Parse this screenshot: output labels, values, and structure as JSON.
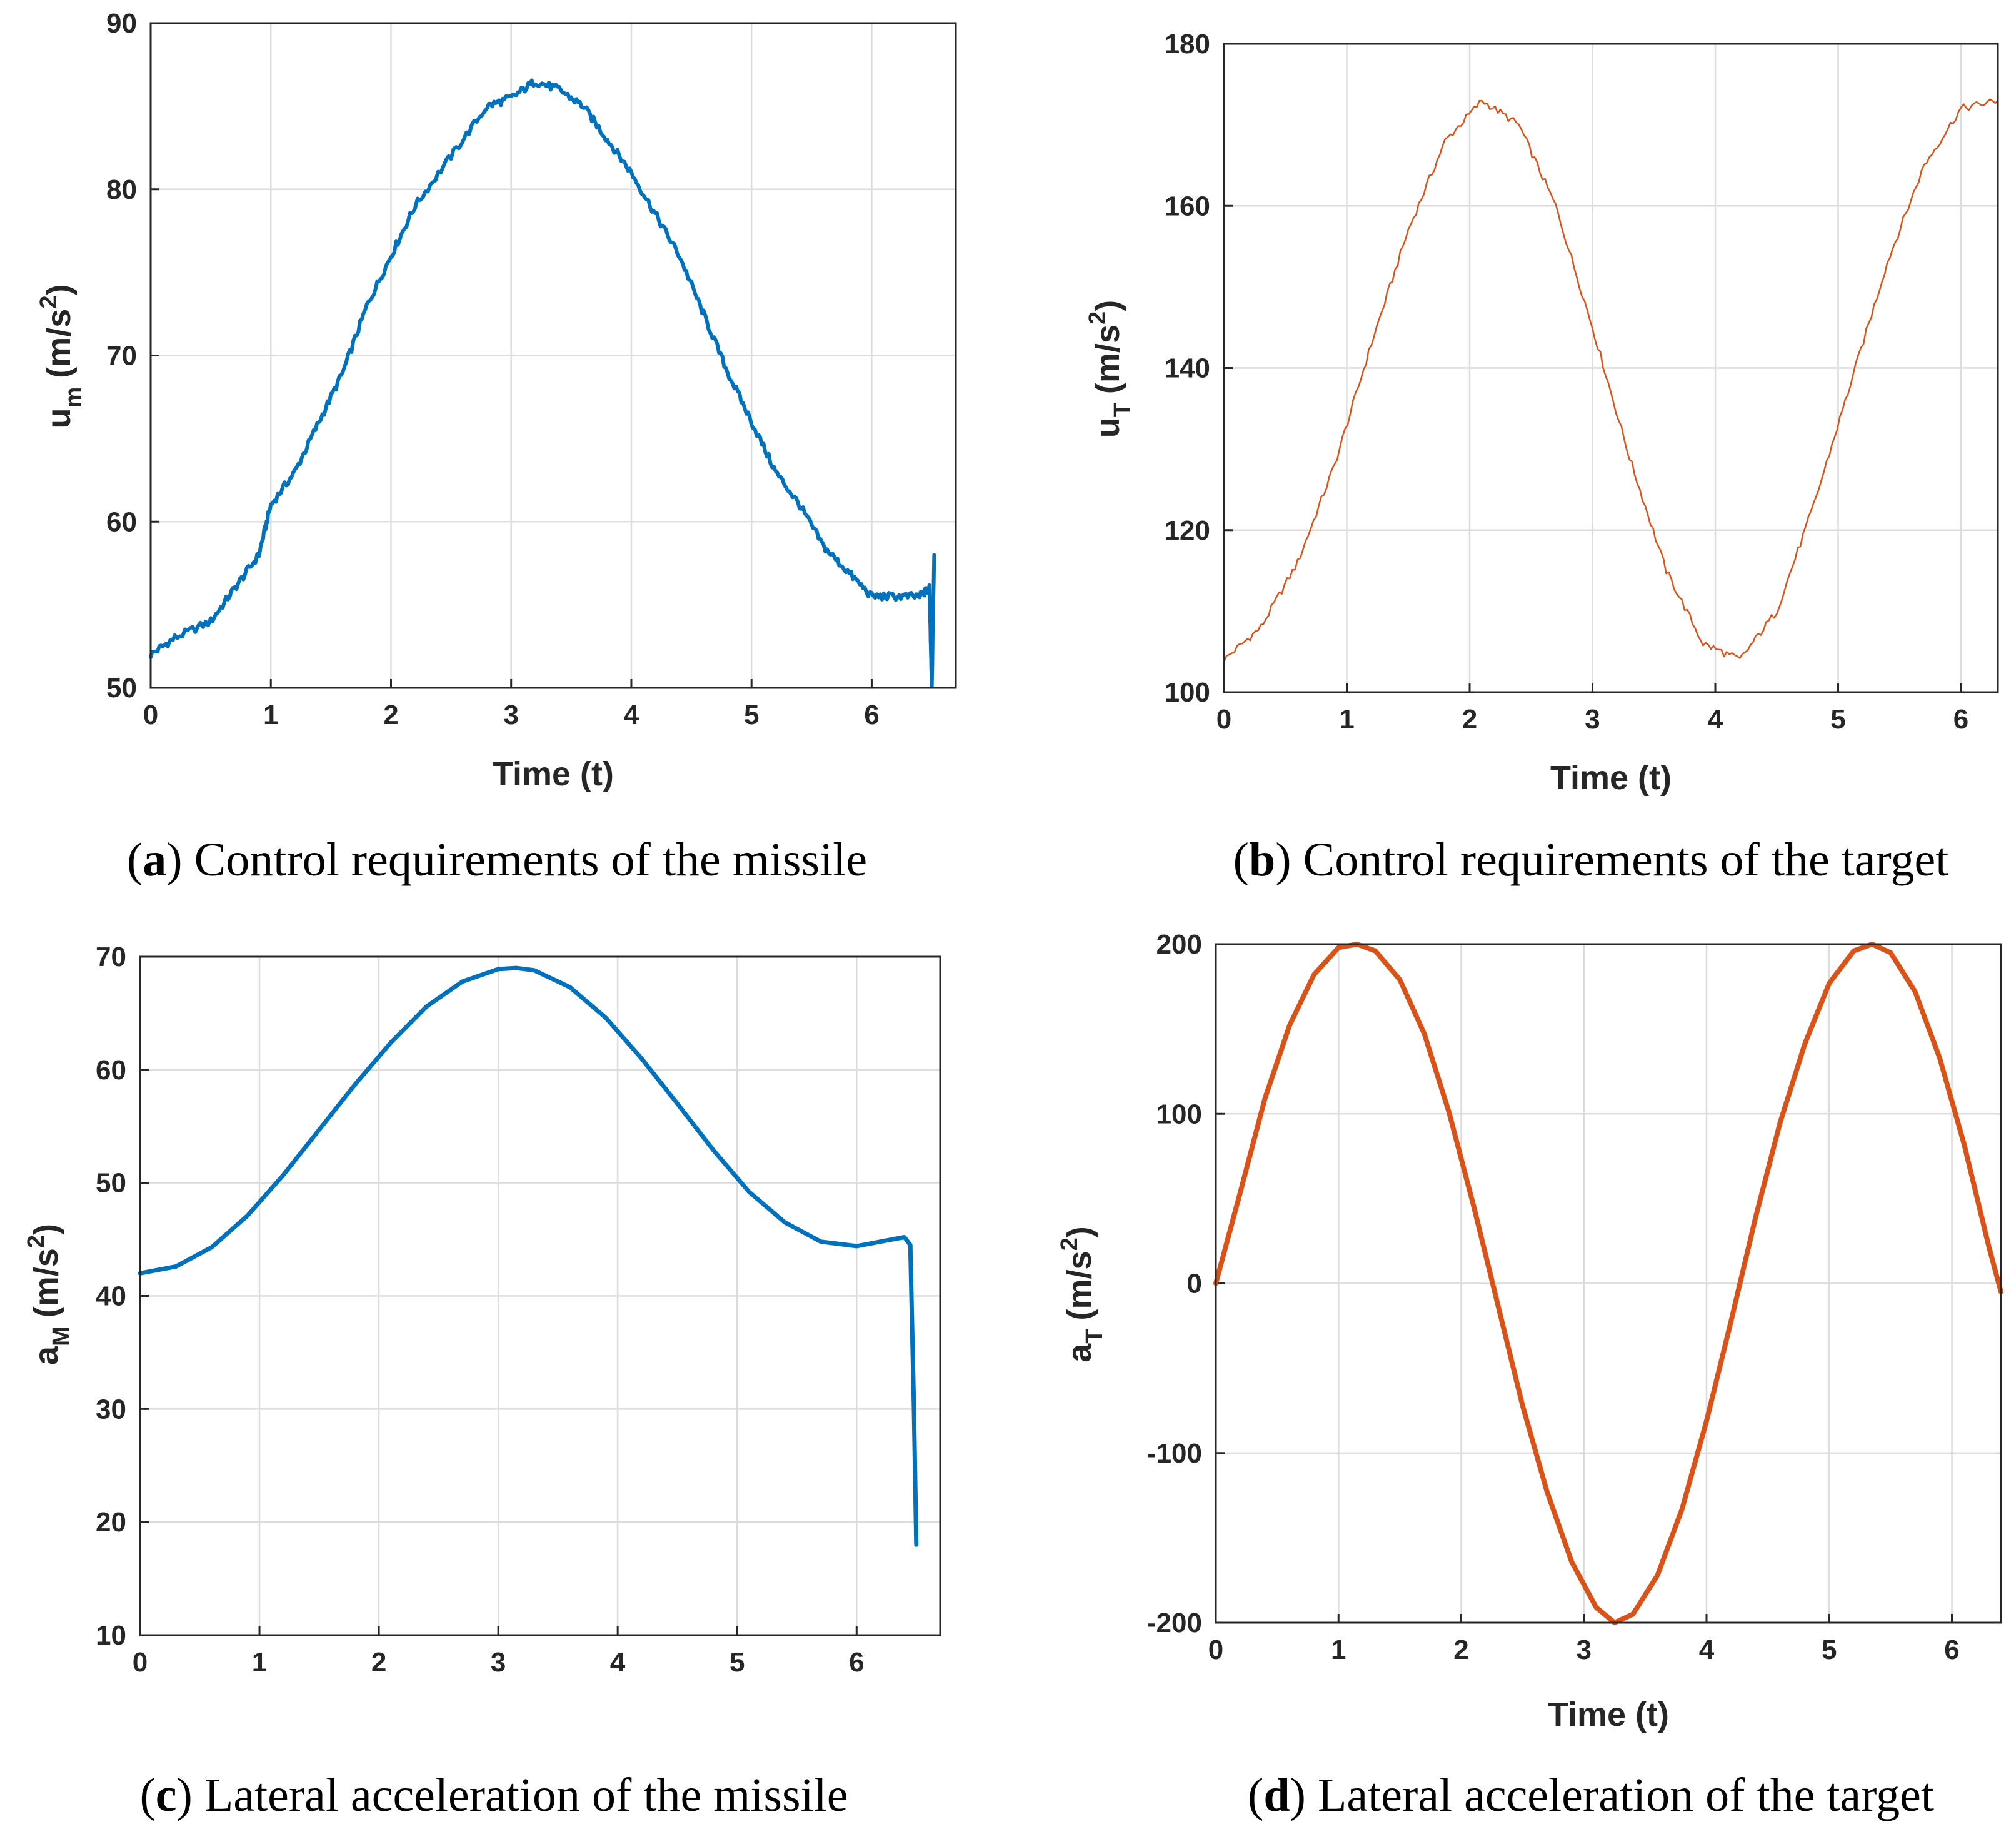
{
  "colors": {
    "blue": "#0072BD",
    "orange": "#D95319"
  },
  "chart_data": [
    {
      "id": "a",
      "type": "line",
      "title": "",
      "caption_letter": "a",
      "caption_text": "Control requirements of the missile",
      "xlabel": "Time (t)",
      "ylabel_base": "u",
      "ylabel_sub": "m",
      "ylabel_unit": "(m/s",
      "ylabel_sup": "2",
      "ylabel_close": ")",
      "xlim": [
        0,
        6.7
      ],
      "ylim": [
        50,
        90
      ],
      "xticks": [
        0,
        1,
        2,
        3,
        4,
        5,
        6
      ],
      "yticks": [
        50,
        60,
        70,
        80,
        90
      ],
      "grid": true,
      "color": "blue",
      "stroke": 6,
      "noisy": true,
      "series": [
        {
          "name": "u_m",
          "x": [
            0,
            0.2,
            0.5,
            0.7,
            0.9,
            1.0,
            1.2,
            1.4,
            1.6,
            1.8,
            2.0,
            2.2,
            2.5,
            2.8,
            3.0,
            3.2,
            3.4,
            3.6,
            3.8,
            4.0,
            4.2,
            4.4,
            4.6,
            4.8,
            5.0,
            5.2,
            5.4,
            5.6,
            5.8,
            6.0,
            6.2,
            6.4,
            6.48,
            6.5,
            6.52
          ],
          "y": [
            52,
            53,
            54,
            56,
            58,
            61,
            63,
            66,
            69,
            73,
            76,
            79,
            82,
            85,
            85.5,
            86.5,
            86,
            85,
            83,
            81,
            78.5,
            76,
            72.5,
            69,
            66,
            63,
            61,
            58.5,
            57,
            55.5,
            55.5,
            55.5,
            56,
            50,
            58
          ]
        }
      ]
    },
    {
      "id": "b",
      "type": "line",
      "title": "",
      "caption_letter": "b",
      "caption_text": "Control requirements of the target",
      "xlabel": "Time (t)",
      "ylabel_base": "u",
      "ylabel_sub": "T",
      "ylabel_unit": "(m/s",
      "ylabel_sup": "2",
      "ylabel_close": ")",
      "xlim": [
        0,
        6.3
      ],
      "ylim": [
        100,
        180
      ],
      "xticks": [
        0,
        1,
        2,
        3,
        4,
        5,
        6
      ],
      "yticks": [
        100,
        120,
        140,
        160,
        180
      ],
      "grid": true,
      "color": "orange",
      "stroke": 2.5,
      "noisy": true,
      "series": [
        {
          "name": "u_T",
          "x": [
            0,
            0.3,
            0.6,
            0.9,
            1.2,
            1.5,
            1.8,
            2.1,
            2.4,
            2.7,
            3.0,
            3.3,
            3.6,
            3.9,
            4.2,
            4.5,
            4.8,
            5.1,
            5.4,
            5.7,
            6.0,
            6.3
          ],
          "y": [
            104,
            108,
            116,
            128,
            143,
            157,
            168,
            173,
            170,
            160,
            145,
            129,
            115,
            106,
            104,
            110,
            123,
            138,
            153,
            165,
            172,
            173
          ]
        }
      ]
    },
    {
      "id": "c",
      "type": "line",
      "title": "",
      "caption_letter": "c",
      "caption_text": "Lateral acceleration of the missile",
      "xlabel": "",
      "ylabel_base": "a",
      "ylabel_sub": "M",
      "ylabel_unit": "(m/s",
      "ylabel_sup": "2",
      "ylabel_close": ")",
      "xlim": [
        0,
        6.7
      ],
      "ylim": [
        10,
        70
      ],
      "xticks": [
        0,
        1,
        2,
        3,
        4,
        5,
        6
      ],
      "yticks": [
        10,
        20,
        30,
        40,
        50,
        60,
        70
      ],
      "grid": true,
      "color": "blue",
      "stroke": 7,
      "noisy": false,
      "series": [
        {
          "name": "a_M",
          "x": [
            0,
            0.3,
            0.6,
            0.9,
            1.2,
            1.5,
            1.8,
            2.1,
            2.4,
            2.7,
            3.0,
            3.15,
            3.3,
            3.6,
            3.9,
            4.2,
            4.5,
            4.8,
            5.1,
            5.4,
            5.7,
            6.0,
            6.2,
            6.4,
            6.45,
            6.48,
            6.5
          ],
          "y": [
            42,
            42.6,
            44.3,
            47.1,
            50.7,
            54.7,
            58.7,
            62.4,
            65.6,
            67.8,
            68.9,
            69,
            68.8,
            67.3,
            64.6,
            61,
            57,
            52.9,
            49.2,
            46.5,
            44.8,
            44.4,
            44.8,
            45.2,
            44.5,
            30,
            18
          ]
        }
      ]
    },
    {
      "id": "d",
      "type": "line",
      "title": "",
      "caption_letter": "d",
      "caption_text": "Lateral acceleration of the target",
      "xlabel": "Time (t)",
      "ylabel_base": "a",
      "ylabel_sub": "T",
      "ylabel_unit": "(m/s",
      "ylabel_sup": "2",
      "ylabel_close": ")",
      "xlim": [
        0,
        6.4
      ],
      "ylim": [
        -200,
        200
      ],
      "xticks": [
        0,
        1,
        2,
        3,
        4,
        5,
        6
      ],
      "yticks": [
        -200,
        -100,
        0,
        100,
        200
      ],
      "grid": true,
      "color": "orange",
      "stroke": 8,
      "noisy": false,
      "series": [
        {
          "name": "a_T",
          "x": [
            0,
            0.2,
            0.4,
            0.6,
            0.8,
            1.0,
            1.15,
            1.3,
            1.5,
            1.7,
            1.9,
            2.1,
            2.3,
            2.5,
            2.7,
            2.9,
            3.1,
            3.25,
            3.4,
            3.6,
            3.8,
            4.0,
            4.2,
            4.4,
            4.6,
            4.8,
            5.0,
            5.2,
            5.35,
            5.5,
            5.7,
            5.9,
            6.1,
            6.3,
            6.4
          ],
          "y": [
            0,
            54,
            109,
            152,
            182,
            198,
            200,
            196,
            179,
            147,
            101,
            46,
            -13,
            -72,
            -123,
            -164,
            -191,
            -200,
            -195,
            -172,
            -133,
            -81,
            -22,
            39,
            95,
            141,
            177,
            196,
            200,
            195,
            172,
            133,
            82,
            22,
            -5
          ]
        }
      ]
    }
  ]
}
